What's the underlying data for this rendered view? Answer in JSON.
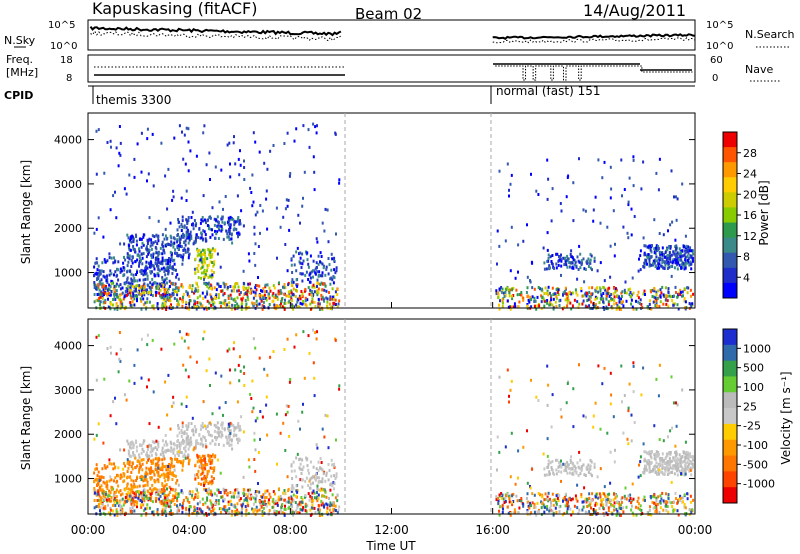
{
  "header": {
    "station": "Kapuskasing (fitACF)",
    "beam": "Beam 02",
    "date": "14/Aug/2011"
  },
  "colors": {
    "axis": "#000000",
    "background": "#ffffff"
  },
  "chart_data": [
    {
      "type": "line",
      "panel": "noise",
      "left_label": "N.Sky",
      "right_label": "N.Search",
      "left_ticks": [
        "10^5",
        "10^0"
      ],
      "right_ticks": [
        "10^5",
        "10^0"
      ],
      "segments": [
        {
          "start_hour": 0.0,
          "end_hour": 10.0
        },
        {
          "start_hour": 16.0,
          "end_hour": 24.0
        }
      ]
    },
    {
      "type": "line",
      "panel": "freq_nave",
      "left_label_top": "Freq.",
      "left_label_bottom": "[MHz]",
      "left_ticks": [
        "18",
        "8"
      ],
      "right_label": "Nave",
      "right_ticks": [
        "60",
        "0"
      ]
    },
    {
      "type": "table",
      "panel": "cpid",
      "label": "CPID",
      "modes": [
        {
          "name": "themis 3300",
          "start_hour": 0.0,
          "end_hour": 10.0
        },
        {
          "name": "normal (fast) 151",
          "start_hour": 16.0,
          "end_hour": 24.0
        }
      ]
    },
    {
      "type": "heatmap",
      "panel": "power",
      "ylabel": "Slant Range [km]",
      "ylim": [
        200,
        4600
      ],
      "yticks": [
        1000,
        2000,
        3000,
        4000
      ],
      "colorbar_label": "Power [dB]",
      "colorbar_ticks": [
        "28",
        "24",
        "20",
        "16",
        "12",
        "8",
        "4"
      ],
      "colorbar_colors": [
        "#ee0000",
        "#ff5500",
        "#ff9900",
        "#ffcc00",
        "#cccc00",
        "#88cc00",
        "#2e9a4e",
        "#3a8a8a",
        "#3358b0",
        "#1f2ec8",
        "#0000ff"
      ]
    },
    {
      "type": "heatmap",
      "panel": "velocity",
      "ylabel": "Slant Range [km]",
      "ylim": [
        200,
        4600
      ],
      "yticks": [
        1000,
        2000,
        3000,
        4000
      ],
      "colorbar_label_main": "Velocity",
      "colorbar_label_unit": "[m s⁻¹]",
      "colorbar_ticks": [
        "1000",
        "500",
        "100",
        "25",
        "-25",
        "-100",
        "-500",
        "-1000"
      ],
      "colorbar_colors": [
        "#1c2ed0",
        "#2f6aaa",
        "#34a04a",
        "#66cc33",
        "#bbbbbb",
        "#c8c8c8",
        "#ffcc00",
        "#ff9900",
        "#ff7700",
        "#ff4400",
        "#ee0000"
      ]
    }
  ],
  "xaxis": {
    "label": "Time UT",
    "ticks": [
      "00:00",
      "04:00",
      "08:00",
      "12:00",
      "16:00",
      "20:00",
      "00:00"
    ],
    "tick_hours": [
      0,
      4,
      8,
      12,
      16,
      20,
      24
    ]
  }
}
